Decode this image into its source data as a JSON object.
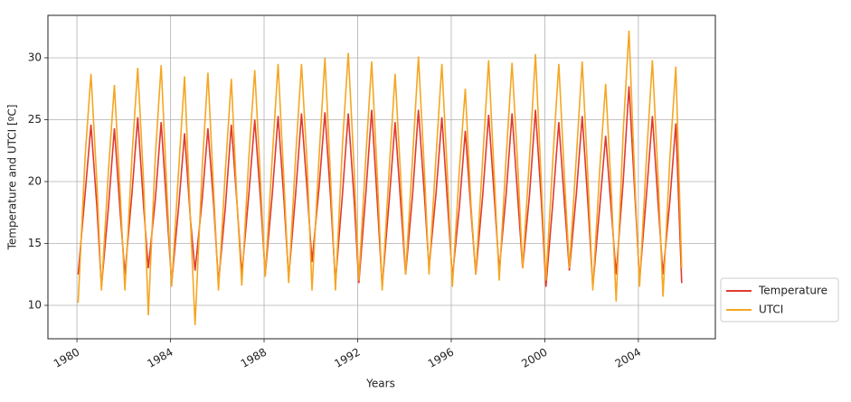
{
  "chart_data": {
    "type": "line",
    "xlabel": "Years",
    "ylabel": "Temperature and UTCI [ºC]",
    "x": [
      1980.05,
      1980.35,
      1980.6,
      1980.85,
      1981.05,
      1981.35,
      1981.6,
      1981.85,
      1982.05,
      1982.35,
      1982.6,
      1982.85,
      1983.05,
      1983.35,
      1983.6,
      1983.85,
      1984.05,
      1984.35,
      1984.6,
      1984.85,
      1985.05,
      1985.35,
      1985.6,
      1985.85,
      1986.05,
      1986.35,
      1986.6,
      1986.85,
      1987.05,
      1987.35,
      1987.6,
      1987.85,
      1988.05,
      1988.35,
      1988.6,
      1988.85,
      1989.05,
      1989.35,
      1989.6,
      1989.85,
      1990.05,
      1990.35,
      1990.6,
      1990.85,
      1991.05,
      1991.35,
      1991.6,
      1991.85,
      1992.05,
      1992.35,
      1992.6,
      1992.85,
      1993.05,
      1993.35,
      1993.6,
      1993.85,
      1994.05,
      1994.35,
      1994.6,
      1994.85,
      1995.05,
      1995.35,
      1995.6,
      1995.85,
      1996.05,
      1996.35,
      1996.6,
      1996.85,
      1997.05,
      1997.35,
      1997.6,
      1997.85,
      1998.05,
      1998.35,
      1998.6,
      1998.85,
      1999.05,
      1999.35,
      1999.6,
      1999.85,
      2000.05,
      2000.35,
      2000.6,
      2000.85,
      2001.05,
      2001.35,
      2001.6,
      2001.85,
      2002.05,
      2002.35,
      2002.6,
      2002.85,
      2003.05,
      2003.35,
      2003.6,
      2003.85,
      2004.05,
      2004.35,
      2004.6,
      2004.85,
      2005.05,
      2005.35,
      2005.6,
      2005.85
    ],
    "series": [
      {
        "name": "Temperature",
        "color": "#e03a2f",
        "values": [
          12.5,
          19,
          24.6,
          18,
          11.5,
          18,
          24.3,
          17.5,
          12.5,
          19,
          25.2,
          18,
          13,
          18.5,
          24.8,
          17.5,
          11.8,
          18,
          23.9,
          17,
          12.8,
          18.5,
          24.3,
          18,
          11.8,
          18,
          24.6,
          18,
          12.5,
          19,
          25,
          18.5,
          12.5,
          19,
          25.3,
          18.5,
          12.2,
          19,
          25.5,
          19,
          13.5,
          19.5,
          25.6,
          18.5,
          11.8,
          19,
          25.5,
          18.5,
          11.8,
          19,
          25.8,
          18,
          11.5,
          18.5,
          24.8,
          18,
          12.5,
          19,
          25.8,
          19,
          13,
          19,
          25.2,
          18,
          12.2,
          18,
          24.1,
          17.5,
          12.5,
          19,
          25.4,
          18.5,
          12.8,
          19,
          25.5,
          18.5,
          13,
          19,
          25.8,
          18.5,
          11.5,
          18.5,
          24.8,
          18,
          12.8,
          19,
          25.3,
          18,
          11.5,
          18,
          23.7,
          17.5,
          12.5,
          20,
          27.7,
          19,
          12,
          19,
          25.3,
          18,
          12.5,
          18.5,
          24.7,
          11.8
        ]
      },
      {
        "name": "UTCI",
        "color": "#f5a623",
        "values": [
          10.2,
          22,
          28.7,
          20,
          11.2,
          21,
          27.8,
          19,
          11.2,
          22,
          29.2,
          20,
          9.2,
          22,
          29.4,
          19,
          11.5,
          21,
          28.5,
          17,
          8.4,
          21,
          28.8,
          19,
          11.2,
          21,
          28.3,
          18,
          11.6,
          22,
          29,
          20,
          12.3,
          22,
          29.5,
          20,
          11.8,
          22,
          29.5,
          21,
          11.2,
          22,
          30,
          20,
          11.2,
          23,
          30.4,
          21,
          12,
          22,
          29.7,
          20,
          11.2,
          21,
          28.7,
          20,
          12.5,
          22,
          30.1,
          21,
          12.5,
          22,
          29.5,
          20,
          11.5,
          21,
          27.5,
          18,
          12.5,
          22,
          29.8,
          20,
          12,
          22,
          29.6,
          21,
          13,
          22,
          30.3,
          20,
          12,
          22,
          29.5,
          20,
          13,
          22,
          29.7,
          20,
          11.2,
          21,
          27.9,
          19,
          10.3,
          24,
          32.2,
          20,
          11.5,
          22,
          29.8,
          20,
          10.7,
          22,
          29.3,
          13
        ]
      }
    ],
    "xlim": [
      1978.76,
      2007.29
    ],
    "ylim": [
      7.3,
      33.43
    ],
    "xticks": [
      1980,
      1984,
      1988,
      1992,
      1996,
      2000,
      2004
    ],
    "yticks": [
      10,
      15,
      20,
      25,
      30
    ],
    "grid": true,
    "legend": "right"
  }
}
